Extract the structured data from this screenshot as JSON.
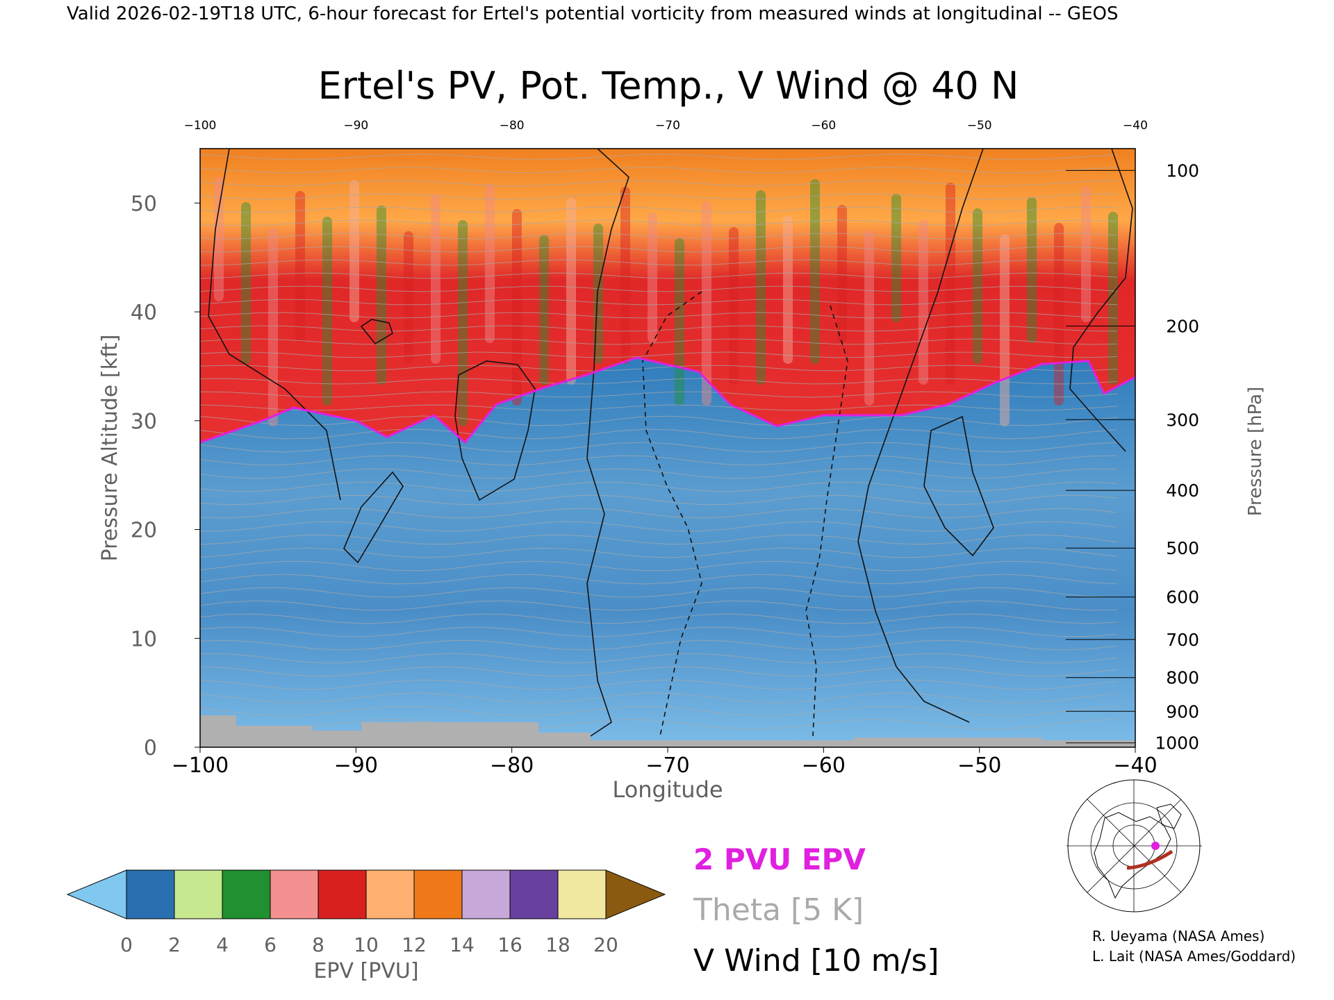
{
  "header": "Valid 2026-02-19T18 UTC, 6-hour forecast for Ertel's potential vorticity from measured winds at longitudinal -- GEOS",
  "chart_data": {
    "type": "heatmap",
    "title": "Ertel's PV, Pot. Temp., V Wind @ 40 N",
    "xlabel": "Longitude",
    "ylabel": "Pressure Altitude [kft]",
    "y2label": "Pressure [hPa]",
    "xlim": [
      -100,
      -40
    ],
    "ylim": [
      0,
      55
    ],
    "x_ticks": [
      "-100",
      "-90",
      "-80",
      "-70",
      "-60",
      "-50",
      "-40"
    ],
    "x_ticks_top": [
      "-100",
      "-90",
      "-80",
      "-70",
      "-60",
      "-50",
      "-40"
    ],
    "y_ticks": [
      "0",
      "10",
      "20",
      "30",
      "40",
      "50"
    ],
    "pressure_ticks": [
      {
        "label": "100",
        "kft": 53.0
      },
      {
        "label": "200",
        "kft": 38.7
      },
      {
        "label": "300",
        "kft": 30.1
      },
      {
        "label": "400",
        "kft": 23.6
      },
      {
        "label": "500",
        "kft": 18.3
      },
      {
        "label": "600",
        "kft": 13.8
      },
      {
        "label": "700",
        "kft": 9.9
      },
      {
        "label": "800",
        "kft": 6.4
      },
      {
        "label": "900",
        "kft": 3.3
      },
      {
        "label": "1000",
        "kft": 0.4
      }
    ],
    "tropopause_2pvu_kft": [
      {
        "lon": -100,
        "kft": 28
      },
      {
        "lon": -96,
        "kft": 30
      },
      {
        "lon": -94,
        "kft": 31.2
      },
      {
        "lon": -90,
        "kft": 30
      },
      {
        "lon": -88,
        "kft": 28.5
      },
      {
        "lon": -85,
        "kft": 30.5
      },
      {
        "lon": -83,
        "kft": 28
      },
      {
        "lon": -81,
        "kft": 31.5
      },
      {
        "lon": -78,
        "kft": 33
      },
      {
        "lon": -75,
        "kft": 34.3
      },
      {
        "lon": -72,
        "kft": 35.8
      },
      {
        "lon": -68,
        "kft": 34.5
      },
      {
        "lon": -66,
        "kft": 31.5
      },
      {
        "lon": -63,
        "kft": 29.5
      },
      {
        "lon": -60,
        "kft": 30.5
      },
      {
        "lon": -55,
        "kft": 30.5
      },
      {
        "lon": -52,
        "kft": 31.5
      },
      {
        "lon": -49,
        "kft": 33.5
      },
      {
        "lon": -46,
        "kft": 35.2
      },
      {
        "lon": -43,
        "kft": 35.5
      },
      {
        "lon": -42,
        "kft": 32.5
      },
      {
        "lon": -40,
        "kft": 34
      }
    ],
    "colorbar": {
      "label": "EPV [PVU]",
      "ticks": [
        "0",
        "2",
        "4",
        "6",
        "8",
        "10",
        "12",
        "14",
        "16",
        "18",
        "20"
      ],
      "colors": {
        "under": "#80c8f0",
        "0-2": "#2a70b0",
        "2-4": "#c8e890",
        "4-6": "#209030",
        "6-8": "#f49090",
        "8-10": "#d82020",
        "10-12": "#ffb070",
        "12-14": "#f07818",
        "14-16": "#c8a8d8",
        "16-18": "#6840a0",
        "18-20": "#f0e8a0",
        "over": "#8a5a10"
      }
    },
    "legend": {
      "pvu": "2 PVU EPV",
      "theta": "Theta [5 K]",
      "vwind": "V Wind [10 m/s]"
    },
    "colors": {
      "pvu_line": "#e020e0",
      "theta_line": "#aaaaaa",
      "vwind_line": "#111111",
      "terrain": "#b0b0b0"
    }
  },
  "inset_map": {
    "icon": "polar-map-inset-icon",
    "section_color": "#b03020",
    "marker_color": "#e020e0"
  },
  "credits": [
    "R. Ueyama (NASA Ames)",
    "L. Lait (NASA Ames/Goddard)"
  ]
}
